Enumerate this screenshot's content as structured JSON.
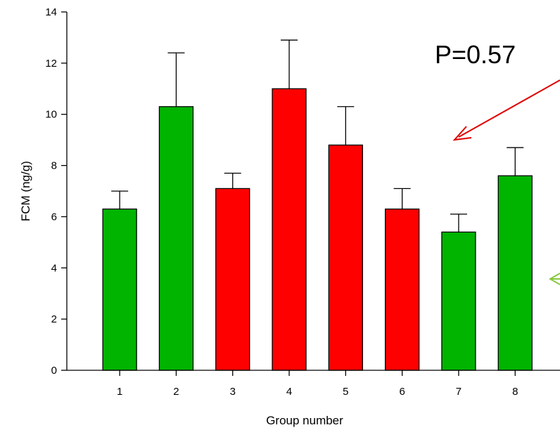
{
  "chart_data": {
    "type": "bar",
    "categories": [
      "1",
      "2",
      "3",
      "4",
      "5",
      "6",
      "7",
      "8"
    ],
    "values": [
      6.3,
      10.3,
      7.1,
      11.0,
      8.8,
      6.3,
      5.4,
      7.6
    ],
    "errors": [
      0.7,
      2.1,
      0.6,
      1.9,
      1.5,
      0.8,
      0.7,
      1.1
    ],
    "bar_colors": [
      "#00b400",
      "#00b400",
      "#ff0000",
      "#ff0000",
      "#ff0000",
      "#ff0000",
      "#00b400",
      "#00b400"
    ],
    "xlabel": "Group number",
    "ylabel": "FCM (ng/g)",
    "ylim": [
      0,
      14
    ],
    "yticks": [
      0,
      2,
      4,
      6,
      8,
      10,
      12,
      14
    ],
    "grid": false,
    "annotations": [
      {
        "text": "P=0.57"
      }
    ],
    "arrows": [
      {
        "color": "#e00000"
      },
      {
        "color": "#88c840"
      }
    ]
  }
}
